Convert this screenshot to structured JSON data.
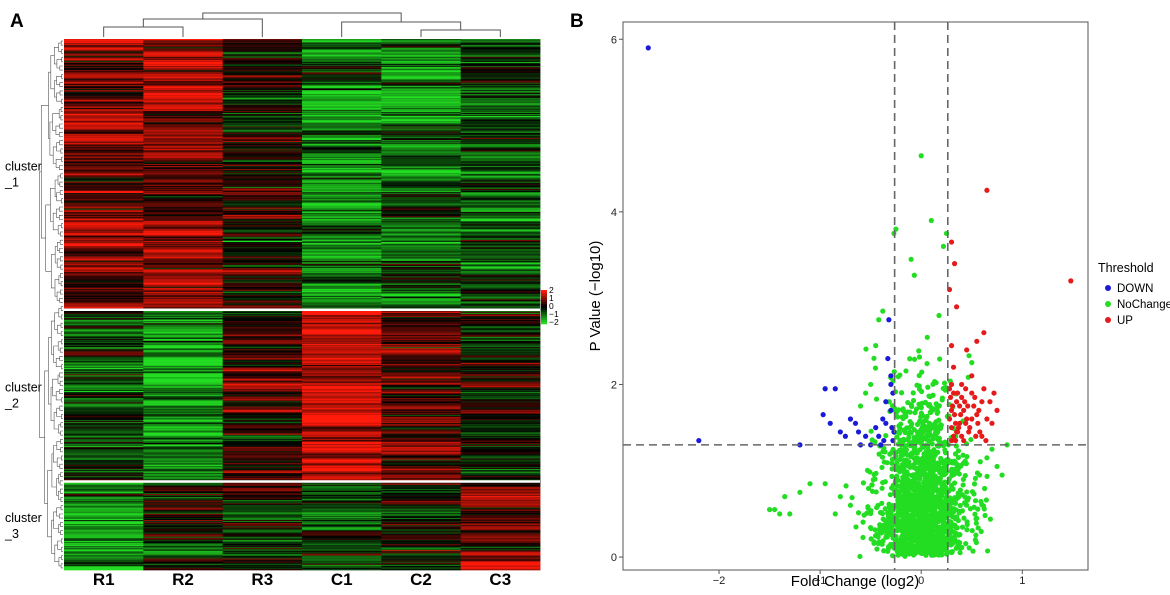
{
  "panels": {
    "a_letter": "A",
    "b_letter": "B"
  },
  "chart_data": [
    {
      "type": "heatmap",
      "panel": "A",
      "columns": [
        "R1",
        "R2",
        "R3",
        "C1",
        "C2",
        "C3"
      ],
      "row_clusters": [
        {
          "label": [
            "cluster",
            "_1"
          ],
          "row_count": 260
        },
        {
          "label": [
            "cluster",
            "_2"
          ],
          "row_count": 165
        },
        {
          "label": [
            "cluster",
            "_3"
          ],
          "row_count": 85
        }
      ],
      "block_means": [
        [
          0.9,
          1.0,
          0.1,
          -1.1,
          -0.9,
          -0.7
        ],
        [
          -0.5,
          -1.3,
          0.5,
          1.7,
          0.6,
          -0.2
        ],
        [
          -1.3,
          -0.3,
          -0.3,
          -0.5,
          -0.2,
          0.8
        ]
      ],
      "color_scale": {
        "low": "#22dd22",
        "mid": "#000000",
        "high": "#ff1a0a",
        "min": -2,
        "max": 2
      },
      "legend_ticks": [
        "2",
        "1",
        "0",
        "−1",
        "−2"
      ]
    },
    {
      "type": "scatter",
      "panel": "B",
      "title": "",
      "xlabel": "Fold Change (log2)",
      "ylabel": "P Value (−log10)",
      "xlim": [
        -2.95,
        1.65
      ],
      "ylim": [
        -0.15,
        6.2
      ],
      "xticks": [
        -2,
        -1,
        0,
        1
      ],
      "xtick_labels": [
        "−2",
        "−1",
        "0",
        "1"
      ],
      "yticks": [
        0,
        2,
        4,
        6
      ],
      "ytick_labels": [
        "0",
        "2",
        "4",
        "6"
      ],
      "thresholds": {
        "fc": [
          -0.263,
          0.263
        ],
        "p": 1.3
      },
      "legend": {
        "title": "Threshold",
        "entries": [
          {
            "label": "DOWN",
            "color": "#1a1ad9"
          },
          {
            "label": "NoChange",
            "color": "#22dd22"
          },
          {
            "label": "UP",
            "color": "#e61a1a"
          }
        ]
      },
      "series": [
        {
          "name": "DOWN",
          "color": "#1a1ad9",
          "points": [
            [
              -2.7,
              5.9
            ],
            [
              -2.2,
              1.35
            ],
            [
              -1.2,
              1.3
            ],
            [
              -0.95,
              1.95
            ],
            [
              -0.85,
              1.95
            ],
            [
              -0.97,
              1.65
            ],
            [
              -0.9,
              1.55
            ],
            [
              -0.8,
              1.45
            ],
            [
              -0.75,
              1.4
            ],
            [
              -0.7,
              1.6
            ],
            [
              -0.65,
              1.55
            ],
            [
              -0.6,
              1.3
            ],
            [
              -0.62,
              1.45
            ],
            [
              -0.55,
              1.4
            ],
            [
              -0.5,
              1.3
            ],
            [
              -0.45,
              1.5
            ],
            [
              -0.42,
              1.4
            ],
            [
              -0.38,
              1.6
            ],
            [
              -0.35,
              1.8
            ],
            [
              -0.33,
              2.3
            ],
            [
              -0.32,
              2.75
            ],
            [
              -0.3,
              1.7
            ],
            [
              -0.3,
              2.1
            ],
            [
              -0.29,
              1.5
            ],
            [
              -0.28,
              1.35
            ],
            [
              -0.28,
              1.9
            ],
            [
              -0.27,
              1.45
            ],
            [
              -0.35,
              1.55
            ],
            [
              -0.4,
              1.3
            ],
            [
              -0.37,
              1.35
            ],
            [
              -0.3,
              2.0
            ]
          ]
        },
        {
          "name": "UP",
          "color": "#e61a1a",
          "points": [
            [
              0.65,
              4.25
            ],
            [
              1.48,
              3.2
            ],
            [
              0.3,
              3.65
            ],
            [
              0.33,
              3.4
            ],
            [
              0.28,
              3.1
            ],
            [
              0.35,
              2.9
            ],
            [
              0.3,
              2.45
            ],
            [
              0.45,
              2.4
            ],
            [
              0.55,
              2.5
            ],
            [
              0.62,
              2.6
            ],
            [
              0.7,
              1.55
            ],
            [
              0.75,
              1.7
            ],
            [
              0.5,
              2.1
            ],
            [
              0.3,
              2.0
            ],
            [
              0.32,
              1.9
            ],
            [
              0.35,
              1.8
            ],
            [
              0.38,
              1.75
            ],
            [
              0.4,
              1.85
            ],
            [
              0.42,
              1.7
            ],
            [
              0.45,
              1.6
            ],
            [
              0.48,
              1.5
            ],
            [
              0.5,
              1.9
            ],
            [
              0.52,
              1.75
            ],
            [
              0.55,
              1.65
            ],
            [
              0.58,
              1.45
            ],
            [
              0.6,
              1.8
            ],
            [
              0.62,
              1.95
            ],
            [
              0.65,
              1.6
            ],
            [
              0.68,
              1.8
            ],
            [
              0.28,
              1.6
            ],
            [
              0.3,
              1.5
            ],
            [
              0.32,
              1.4
            ],
            [
              0.34,
              1.35
            ],
            [
              0.36,
              1.45
            ],
            [
              0.38,
              1.55
            ],
            [
              0.4,
              1.4
            ],
            [
              0.42,
              1.35
            ],
            [
              0.44,
              1.55
            ],
            [
              0.46,
              1.75
            ],
            [
              0.5,
              1.6
            ],
            [
              0.54,
              1.4
            ],
            [
              0.56,
              1.55
            ],
            [
              0.3,
              1.7
            ],
            [
              0.33,
              1.65
            ],
            [
              0.36,
              1.9
            ],
            [
              0.4,
              2.0
            ],
            [
              0.44,
              1.95
            ],
            [
              0.29,
              1.85
            ],
            [
              0.31,
              1.75
            ],
            [
              0.34,
              1.55
            ],
            [
              0.37,
              1.5
            ],
            [
              0.39,
              1.65
            ],
            [
              0.43,
              1.8
            ],
            [
              0.47,
              1.45
            ],
            [
              0.53,
              1.85
            ],
            [
              0.57,
              1.7
            ],
            [
              0.3,
              1.35
            ],
            [
              0.35,
              1.45
            ],
            [
              0.28,
              1.95
            ],
            [
              0.32,
              2.2
            ],
            [
              0.6,
              1.4
            ],
            [
              0.72,
              1.9
            ],
            [
              0.64,
              1.35
            ]
          ]
        },
        {
          "name": "NoChange",
          "color": "#22dd22",
          "n": 1600,
          "extra_points": [
            [
              -0.25,
              3.8
            ],
            [
              -0.27,
              3.75
            ],
            [
              0.0,
              4.65
            ],
            [
              0.25,
              3.75
            ],
            [
              0.22,
              3.6
            ],
            [
              0.1,
              3.9
            ],
            [
              -0.1,
              3.45
            ],
            [
              -1.45,
              0.55
            ],
            [
              -1.5,
              0.55
            ],
            [
              -1.4,
              0.5
            ],
            [
              -1.3,
              0.5
            ],
            [
              -1.2,
              0.75
            ],
            [
              -1.1,
              0.85
            ],
            [
              -1.35,
              0.7
            ],
            [
              -0.95,
              0.85
            ],
            [
              0.85,
              1.3
            ],
            [
              0.75,
              1.05
            ],
            [
              0.8,
              0.95
            ],
            [
              0.7,
              1.25
            ],
            [
              -0.85,
              0.5
            ],
            [
              -0.8,
              0.7
            ],
            [
              -0.7,
              0.6
            ],
            [
              -0.45,
              2.45
            ],
            [
              -0.5,
              2.0
            ],
            [
              -0.55,
              1.9
            ],
            [
              -0.6,
              1.75
            ],
            [
              -0.42,
              2.75
            ],
            [
              -0.38,
              2.85
            ],
            [
              0.65,
              1.15
            ]
          ]
        }
      ]
    }
  ]
}
